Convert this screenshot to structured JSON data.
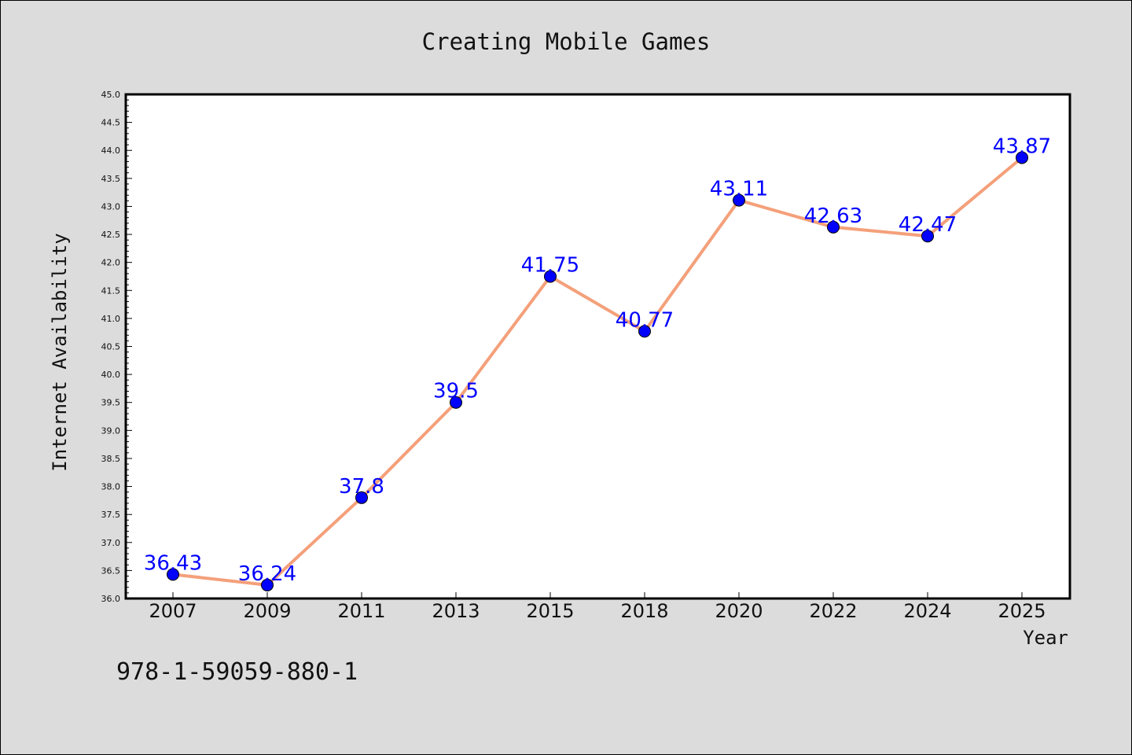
{
  "chart_data": {
    "type": "line",
    "title": "Creating Mobile Games",
    "xlabel": "Year",
    "ylabel": "Internet Availability",
    "categories": [
      "2007",
      "2009",
      "2011",
      "2013",
      "2015",
      "2018",
      "2020",
      "2022",
      "2024",
      "2025"
    ],
    "values": [
      36.43,
      36.24,
      37.8,
      39.5,
      41.75,
      40.77,
      43.11,
      42.63,
      42.47,
      43.87
    ],
    "data_labels": [
      "36.43",
      "36.24",
      "37.8",
      "39.5",
      "41.75",
      "40.77",
      "43.11",
      "42.63",
      "42.47",
      "43.87"
    ],
    "ylim": [
      36.0,
      45.0
    ],
    "yticks": [
      "36.0",
      "36.5",
      "37.0",
      "37.5",
      "38.0",
      "38.5",
      "39.0",
      "39.5",
      "40.0",
      "40.5",
      "41.0",
      "41.5",
      "42.0",
      "42.5",
      "43.0",
      "43.5",
      "44.0",
      "44.5",
      "45.0"
    ],
    "grid": false,
    "line_color": "#f4a07a",
    "marker_color": "#0000ff",
    "label_color": "#0000ff"
  },
  "footer": {
    "code": "978-1-59059-880-1"
  }
}
